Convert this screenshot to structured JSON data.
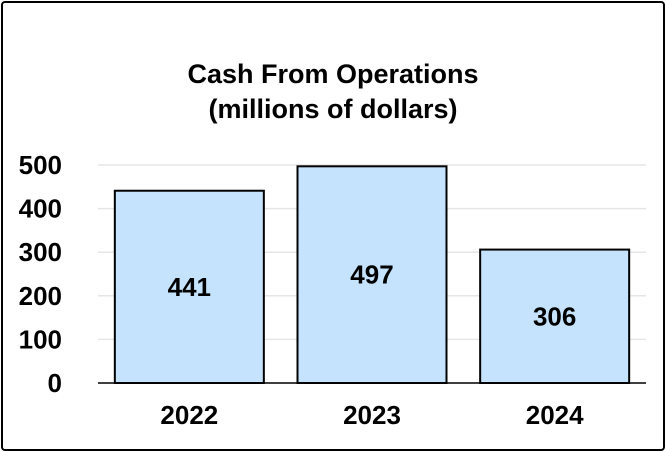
{
  "chart_data": {
    "type": "bar",
    "title": "Cash From Operations",
    "subtitle": "(millions of dollars)",
    "categories": [
      "2022",
      "2023",
      "2024"
    ],
    "values": [
      441,
      497,
      306
    ],
    "data_labels": [
      "441",
      "497",
      "306"
    ],
    "y_ticks": [
      "0",
      "100",
      "200",
      "300",
      "400",
      "500"
    ],
    "ylim": [
      0,
      500
    ],
    "grid": true,
    "bar_color": "#c5e3fd",
    "bar_outline_color": "#000000",
    "grid_color": "#e6e6e6"
  }
}
